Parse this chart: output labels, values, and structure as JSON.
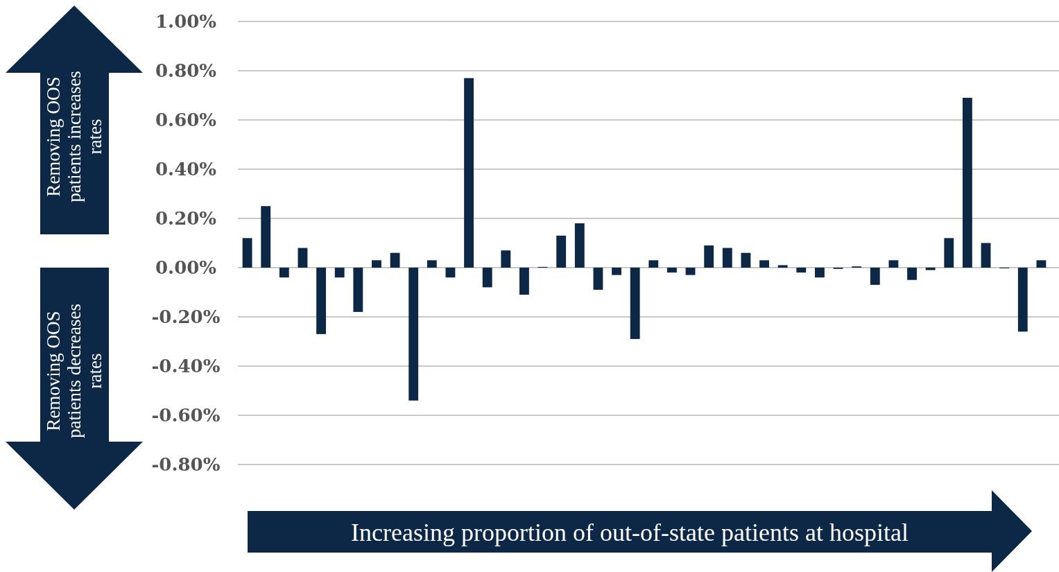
{
  "chart_data": {
    "type": "bar",
    "categories": [
      null,
      null,
      null,
      null,
      null,
      null,
      null,
      null,
      null,
      null,
      null,
      null,
      null,
      null,
      null,
      null,
      null,
      null,
      null,
      null,
      null,
      null,
      null,
      null,
      null,
      null,
      null,
      null,
      null,
      null,
      null,
      null,
      null,
      null,
      null,
      null,
      null,
      null,
      null,
      null,
      null,
      null,
      null,
      null
    ],
    "values": [
      0.12,
      0.25,
      -0.04,
      0.08,
      -0.27,
      -0.04,
      -0.18,
      0.03,
      0.06,
      -0.54,
      0.03,
      -0.04,
      0.77,
      -0.08,
      0.07,
      -0.11,
      0.003,
      0.13,
      0.18,
      -0.09,
      -0.03,
      -0.29,
      0.03,
      -0.02,
      -0.03,
      0.09,
      0.08,
      0.06,
      0.03,
      0.01,
      -0.02,
      -0.04,
      -0.005,
      0.005,
      -0.07,
      0.03,
      -0.05,
      -0.01,
      0.12,
      0.69,
      0.1,
      -0.003,
      -0.26,
      0.03
    ],
    "color": "#0d2747",
    "ylim": [
      -0.8,
      1.0
    ],
    "yticks": [
      {
        "value": -0.8,
        "label": "-0.80%"
      },
      {
        "value": -0.6,
        "label": "-0.60%"
      },
      {
        "value": -0.4,
        "label": "-0.40%"
      },
      {
        "value": -0.2,
        "label": "-0.20%"
      },
      {
        "value": 0,
        "label": "0.00%"
      },
      {
        "value": 0.2,
        "label": "0.20%"
      },
      {
        "value": 0.4,
        "label": "0.40%"
      },
      {
        "value": 0.6,
        "label": "0.60%"
      },
      {
        "value": 0.8,
        "label": "0.80%"
      },
      {
        "value": 1.0,
        "label": "1.00%"
      }
    ],
    "grid": "y",
    "annotations": [
      "Removing OOS patients increases rates",
      "Removing OOS patients decreases rates",
      "Increasing proportion of out-of-state patients at hospital"
    ]
  }
}
